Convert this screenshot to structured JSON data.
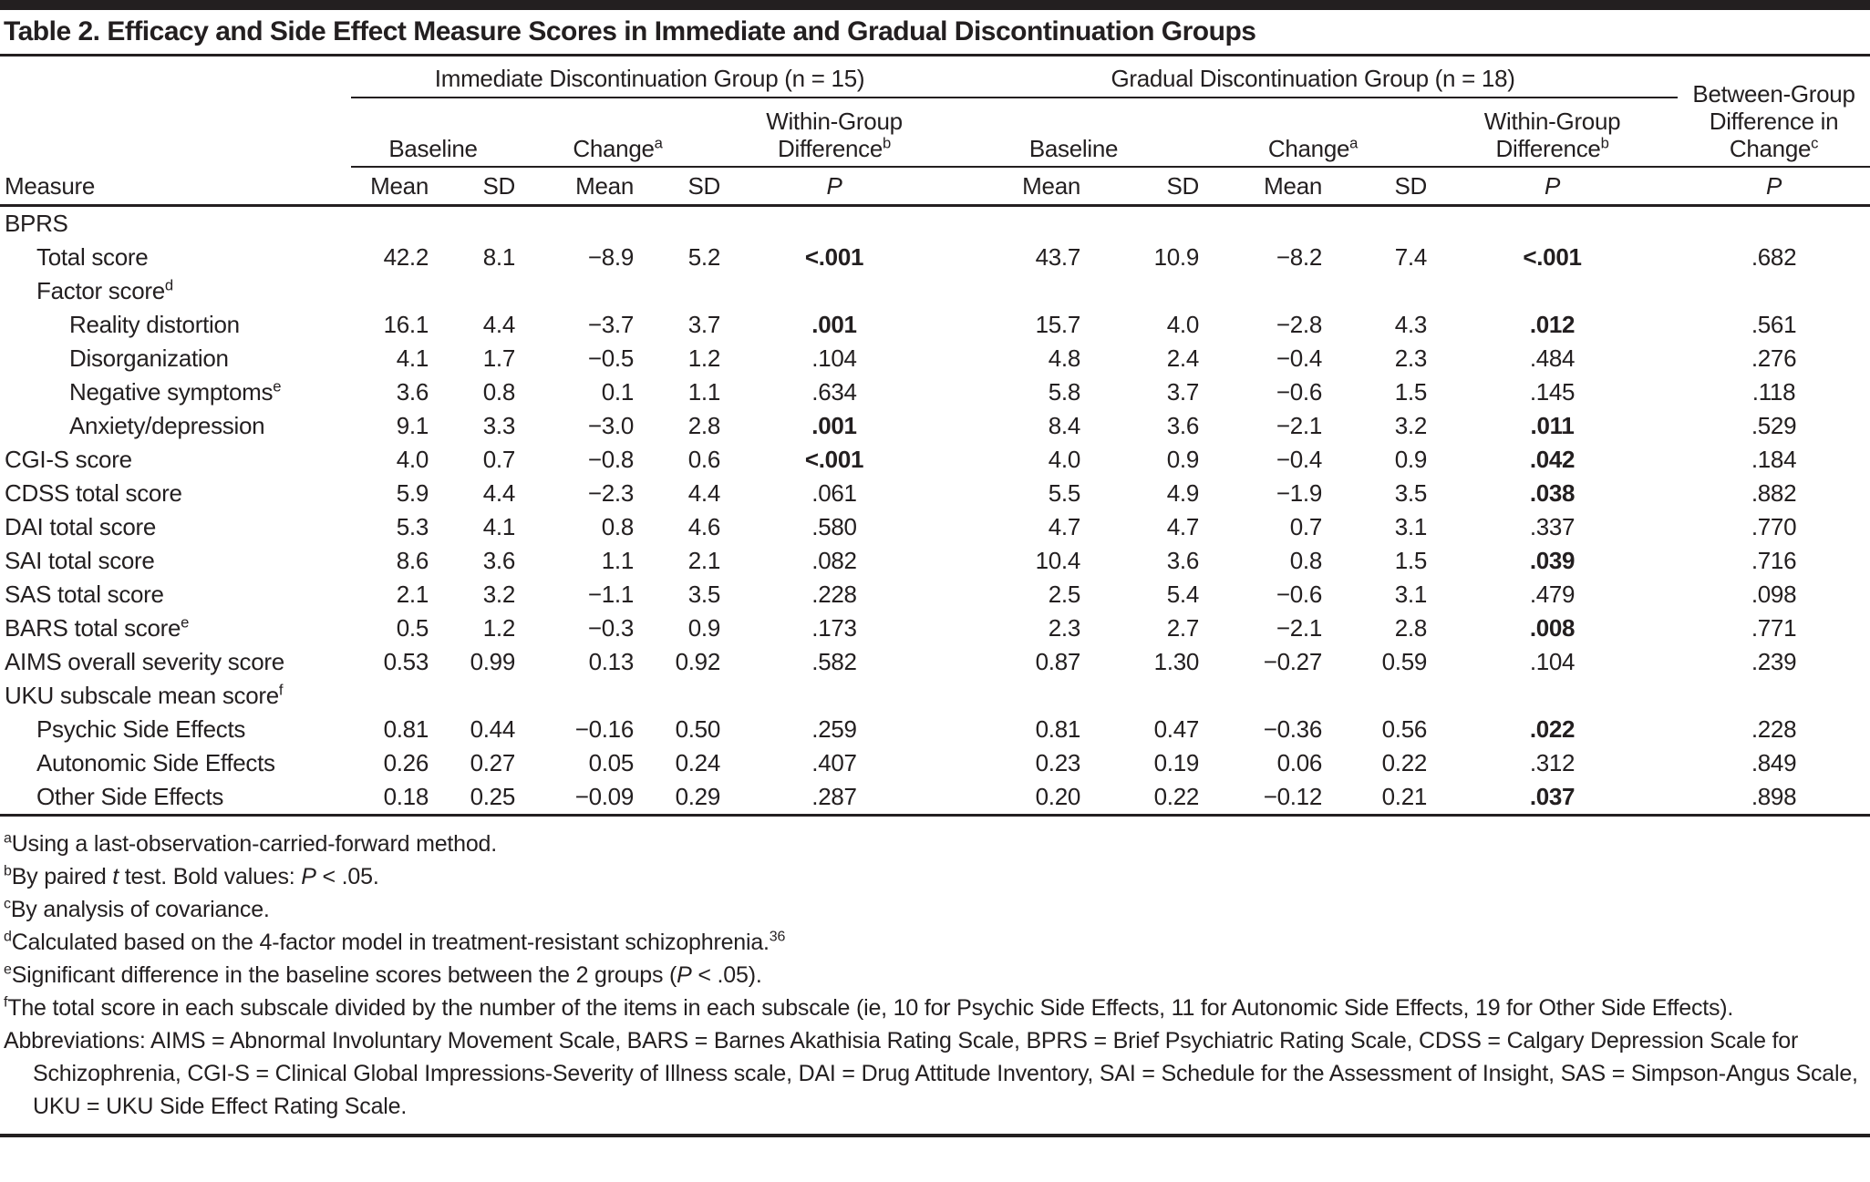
{
  "title": "Table 2. Efficacy and Side Effect Measure Scores in Immediate and Gradual Discontinuation Groups",
  "header": {
    "measure": "Measure",
    "groups": [
      {
        "label": "Immediate Discontinuation Group (n = 15)"
      },
      {
        "label": "Gradual Discontinuation Group (n = 18)"
      }
    ],
    "baseline": "Baseline",
    "change": "Change",
    "change_sup": "a",
    "within_line1": "Within-Group",
    "within_line2": "Difference",
    "within_sup": "b",
    "between_line1": "Between-Group",
    "between_line2": "Difference in",
    "between_line3": "Change",
    "between_sup": "c",
    "mean": "Mean",
    "sd": "SD",
    "p": "P"
  },
  "rows": [
    {
      "label": "BPRS",
      "sup": "",
      "indent": 0,
      "imm": [],
      "imm_p": "",
      "imm_p_bold": false,
      "grad": [],
      "grad_p": "",
      "grad_p_bold": false,
      "between_p": ""
    },
    {
      "label": "Total score",
      "sup": "",
      "indent": 1,
      "imm": [
        "42.2",
        "8.1",
        "−8.9",
        "5.2"
      ],
      "imm_p": "<.001",
      "imm_p_bold": true,
      "grad": [
        "43.7",
        "10.9",
        "−8.2",
        "7.4"
      ],
      "grad_p": "<.001",
      "grad_p_bold": true,
      "between_p": ".682"
    },
    {
      "label": "Factor score",
      "sup": "d",
      "indent": 1,
      "imm": [],
      "imm_p": "",
      "imm_p_bold": false,
      "grad": [],
      "grad_p": "",
      "grad_p_bold": false,
      "between_p": ""
    },
    {
      "label": "Reality distortion",
      "sup": "",
      "indent": 2,
      "imm": [
        "16.1",
        "4.4",
        "−3.7",
        "3.7"
      ],
      "imm_p": ".001",
      "imm_p_bold": true,
      "grad": [
        "15.7",
        "4.0",
        "−2.8",
        "4.3"
      ],
      "grad_p": ".012",
      "grad_p_bold": true,
      "between_p": ".561"
    },
    {
      "label": "Disorganization",
      "sup": "",
      "indent": 2,
      "imm": [
        "4.1",
        "1.7",
        "−0.5",
        "1.2"
      ],
      "imm_p": ".104",
      "imm_p_bold": false,
      "grad": [
        "4.8",
        "2.4",
        "−0.4",
        "2.3"
      ],
      "grad_p": ".484",
      "grad_p_bold": false,
      "between_p": ".276"
    },
    {
      "label": "Negative symptoms",
      "sup": "e",
      "indent": 2,
      "imm": [
        "3.6",
        "0.8",
        "0.1",
        "1.1"
      ],
      "imm_p": ".634",
      "imm_p_bold": false,
      "grad": [
        "5.8",
        "3.7",
        "−0.6",
        "1.5"
      ],
      "grad_p": ".145",
      "grad_p_bold": false,
      "between_p": ".118"
    },
    {
      "label": "Anxiety/depression",
      "sup": "",
      "indent": 2,
      "imm": [
        "9.1",
        "3.3",
        "−3.0",
        "2.8"
      ],
      "imm_p": ".001",
      "imm_p_bold": true,
      "grad": [
        "8.4",
        "3.6",
        "−2.1",
        "3.2"
      ],
      "grad_p": ".011",
      "grad_p_bold": true,
      "between_p": ".529"
    },
    {
      "label": "CGI-S score",
      "sup": "",
      "indent": 0,
      "imm": [
        "4.0",
        "0.7",
        "−0.8",
        "0.6"
      ],
      "imm_p": "<.001",
      "imm_p_bold": true,
      "grad": [
        "4.0",
        "0.9",
        "−0.4",
        "0.9"
      ],
      "grad_p": ".042",
      "grad_p_bold": true,
      "between_p": ".184"
    },
    {
      "label": "CDSS total score",
      "sup": "",
      "indent": 0,
      "imm": [
        "5.9",
        "4.4",
        "−2.3",
        "4.4"
      ],
      "imm_p": ".061",
      "imm_p_bold": false,
      "grad": [
        "5.5",
        "4.9",
        "−1.9",
        "3.5"
      ],
      "grad_p": ".038",
      "grad_p_bold": true,
      "between_p": ".882"
    },
    {
      "label": "DAI total score",
      "sup": "",
      "indent": 0,
      "imm": [
        "5.3",
        "4.1",
        "0.8",
        "4.6"
      ],
      "imm_p": ".580",
      "imm_p_bold": false,
      "grad": [
        "4.7",
        "4.7",
        "0.7",
        "3.1"
      ],
      "grad_p": ".337",
      "grad_p_bold": false,
      "between_p": ".770"
    },
    {
      "label": "SAI total score",
      "sup": "",
      "indent": 0,
      "imm": [
        "8.6",
        "3.6",
        "1.1",
        "2.1"
      ],
      "imm_p": ".082",
      "imm_p_bold": false,
      "grad": [
        "10.4",
        "3.6",
        "0.8",
        "1.5"
      ],
      "grad_p": ".039",
      "grad_p_bold": true,
      "between_p": ".716"
    },
    {
      "label": "SAS total score",
      "sup": "",
      "indent": 0,
      "imm": [
        "2.1",
        "3.2",
        "−1.1",
        "3.5"
      ],
      "imm_p": ".228",
      "imm_p_bold": false,
      "grad": [
        "2.5",
        "5.4",
        "−0.6",
        "3.1"
      ],
      "grad_p": ".479",
      "grad_p_bold": false,
      "between_p": ".098"
    },
    {
      "label": "BARS total score",
      "sup": "e",
      "indent": 0,
      "imm": [
        "0.5",
        "1.2",
        "−0.3",
        "0.9"
      ],
      "imm_p": ".173",
      "imm_p_bold": false,
      "grad": [
        "2.3",
        "2.7",
        "−2.1",
        "2.8"
      ],
      "grad_p": ".008",
      "grad_p_bold": true,
      "between_p": ".771"
    },
    {
      "label": "AIMS overall severity score",
      "sup": "",
      "indent": 0,
      "imm": [
        "0.53",
        "0.99",
        "0.13",
        "0.92"
      ],
      "imm_p": ".582",
      "imm_p_bold": false,
      "grad": [
        "0.87",
        "1.30",
        "−0.27",
        "0.59"
      ],
      "grad_p": ".104",
      "grad_p_bold": false,
      "between_p": ".239"
    },
    {
      "label": "UKU subscale mean score",
      "sup": "f",
      "indent": 0,
      "imm": [],
      "imm_p": "",
      "imm_p_bold": false,
      "grad": [],
      "grad_p": "",
      "grad_p_bold": false,
      "between_p": ""
    },
    {
      "label": "Psychic Side Effects",
      "sup": "",
      "indent": 1,
      "imm": [
        "0.81",
        "0.44",
        "−0.16",
        "0.50"
      ],
      "imm_p": ".259",
      "imm_p_bold": false,
      "grad": [
        "0.81",
        "0.47",
        "−0.36",
        "0.56"
      ],
      "grad_p": ".022",
      "grad_p_bold": true,
      "between_p": ".228"
    },
    {
      "label": "Autonomic Side Effects",
      "sup": "",
      "indent": 1,
      "imm": [
        "0.26",
        "0.27",
        "0.05",
        "0.24"
      ],
      "imm_p": ".407",
      "imm_p_bold": false,
      "grad": [
        "0.23",
        "0.19",
        "0.06",
        "0.22"
      ],
      "grad_p": ".312",
      "grad_p_bold": false,
      "between_p": ".849"
    },
    {
      "label": "Other Side Effects",
      "sup": "",
      "indent": 1,
      "imm": [
        "0.18",
        "0.25",
        "−0.09",
        "0.29"
      ],
      "imm_p": ".287",
      "imm_p_bold": false,
      "grad": [
        "0.20",
        "0.22",
        "−0.12",
        "0.21"
      ],
      "grad_p": ".037",
      "grad_p_bold": true,
      "between_p": ".898"
    }
  ],
  "footnotes": [
    {
      "marker": "a",
      "segments": [
        {
          "t": "Using a last-observation-carried-forward method."
        }
      ]
    },
    {
      "marker": "b",
      "segments": [
        {
          "t": "By paired "
        },
        {
          "t": "t",
          "i": true
        },
        {
          "t": " test. Bold values: "
        },
        {
          "t": "P",
          "i": true
        },
        {
          "t": " < .05."
        }
      ]
    },
    {
      "marker": "c",
      "segments": [
        {
          "t": "By analysis of covariance."
        }
      ]
    },
    {
      "marker": "d",
      "segments": [
        {
          "t": "Calculated based on the 4-factor model in treatment-resistant schizophrenia."
        },
        {
          "t": "36",
          "sup": true
        }
      ]
    },
    {
      "marker": "e",
      "segments": [
        {
          "t": "Significant difference in the baseline scores between the 2 groups ("
        },
        {
          "t": "P",
          "i": true
        },
        {
          "t": " < .05)."
        }
      ]
    },
    {
      "marker": "f",
      "segments": [
        {
          "t": "The total score in each subscale divided by the number of the items in each subscale (ie, 10 for Psychic Side Effects, 11 for Autonomic Side Effects, 19 for Other Side Effects)."
        }
      ]
    },
    {
      "marker": "",
      "segments": [
        {
          "t": "Abbreviations: AIMS = Abnormal Involuntary Movement Scale, BARS = Barnes Akathisia Rating Scale, BPRS = Brief Psychiatric Rating Scale, CDSS = Calgary Depression Scale for Schizophrenia, CGI-S = Clinical Global Impressions-Severity of Illness scale, DAI = Drug Attitude Inventory, SAI = Schedule for the Assessment of Insight, SAS = Simpson-Angus Scale, UKU = UKU Side Effect Rating Scale."
        }
      ]
    }
  ]
}
